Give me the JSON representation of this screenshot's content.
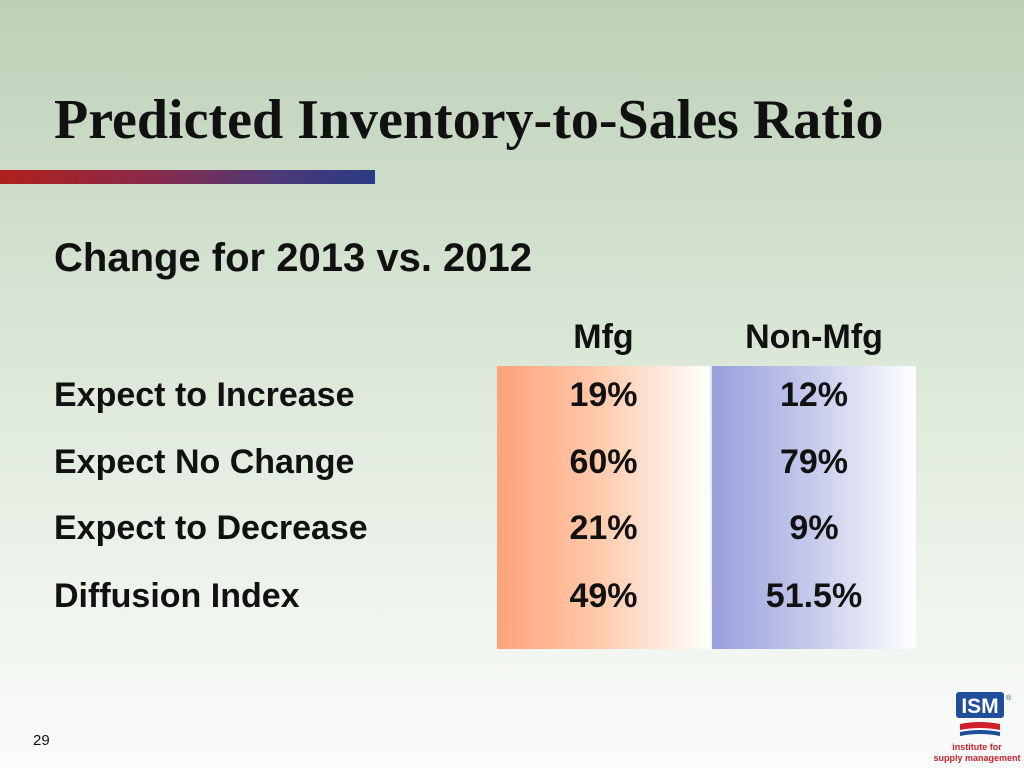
{
  "slide": {
    "title": "Predicted Inventory-to-Sales Ratio",
    "subtitle": "Change for 2013 vs. 2012",
    "page_number": "29"
  },
  "table": {
    "columns": [
      "Mfg",
      "Non-Mfg"
    ],
    "rows": [
      {
        "label": "Expect to Increase",
        "mfg": "19%",
        "non_mfg": "12%"
      },
      {
        "label": "Expect No Change",
        "mfg": "60%",
        "non_mfg": "79%"
      },
      {
        "label": "Expect to Decrease",
        "mfg": "21%",
        "non_mfg": "9%"
      },
      {
        "label": "Diffusion Index",
        "mfg": "49%",
        "non_mfg": "51.5%"
      }
    ]
  },
  "logo": {
    "name": "ISM",
    "mark": "®",
    "line1": "institute for",
    "line2": "supply management",
    "colors": {
      "blue": "#1f4e9a",
      "red": "#d0202a"
    }
  },
  "colors": {
    "mfg_column": "#ffa37a",
    "non_mfg_column": "#99a0dc",
    "accent_bar_start": "#b0201c",
    "accent_bar_end": "#2a3a82"
  }
}
